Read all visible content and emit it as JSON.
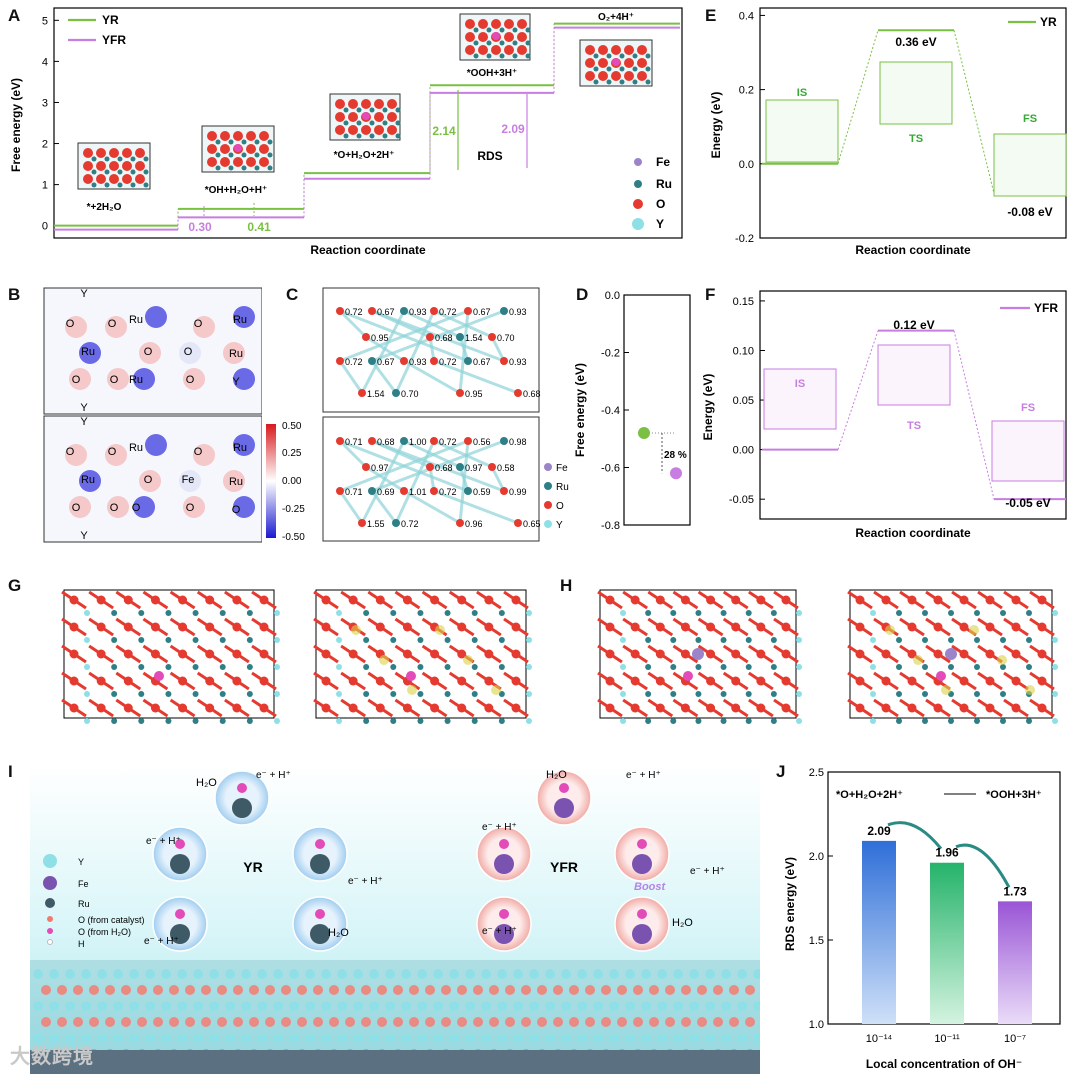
{
  "panel_labels": [
    "A",
    "B",
    "C",
    "D",
    "E",
    "F",
    "G",
    "H",
    "I",
    "J"
  ],
  "colors": {
    "yr": "#7ac143",
    "yfr": "#c77ee0",
    "fe": "#9b84c9",
    "ru": "#2e7f86",
    "o": "#e53a2f",
    "y": "#8fe0e6",
    "pink": "#e24bb8"
  },
  "panelA": {
    "legend": [
      "YR",
      "YFR"
    ],
    "ylabel": "Free energy (eV)",
    "xlabel": "Reaction coordinate",
    "yticks": [
      "0",
      "1",
      "2",
      "3",
      "4",
      "5"
    ],
    "steps": [
      "*+2H₂O",
      "*OH+H₂O+H⁺",
      "*O+H₂O+2H⁺",
      "*OOH+3H⁺",
      "O₂+4H⁺"
    ],
    "rds_label": "RDS",
    "ann": {
      "yfr_first": "0.30",
      "yr_first": "0.41",
      "yr_rds": "2.14",
      "yfr_rds": "2.09"
    },
    "legend2": [
      "Fe",
      "Ru",
      "O",
      "Y"
    ]
  },
  "chart_data": [
    {
      "type": "line",
      "title": "A",
      "xlabel": "Reaction coordinate",
      "ylabel": "Free energy (eV)",
      "ylim": [
        -0.3,
        5.3
      ],
      "categories": [
        "*+2H2O",
        "*OH+H2O+H+",
        "*O+H2O+2H+",
        "*OOH+3H+",
        "O2+4H+"
      ],
      "series": [
        {
          "name": "YR",
          "values": [
            0,
            0.41,
            1.28,
            3.42,
            4.92
          ]
        },
        {
          "name": "YFR",
          "values": [
            0,
            0.3,
            1.24,
            3.33,
            4.92
          ]
        }
      ]
    },
    {
      "type": "line",
      "title": "E",
      "xlabel": "Reaction coordinate",
      "ylabel": "Energy (eV)",
      "ylim": [
        -0.2,
        0.42
      ],
      "categories": [
        "IS",
        "TS",
        "FS"
      ],
      "series": [
        {
          "name": "YR",
          "values": [
            0,
            0.36,
            -0.08
          ]
        }
      ]
    },
    {
      "type": "line",
      "title": "F",
      "xlabel": "Reaction coordinate",
      "ylabel": "Energy (eV)",
      "ylim": [
        -0.07,
        0.16
      ],
      "categories": [
        "IS",
        "TS",
        "FS"
      ],
      "series": [
        {
          "name": "YFR",
          "values": [
            0,
            0.12,
            -0.05
          ]
        }
      ]
    },
    {
      "type": "scatter",
      "title": "D",
      "ylabel": "Free energy (eV)",
      "ylim": [
        -0.8,
        0.0
      ],
      "series": [
        {
          "name": "YR",
          "values": [
            -0.48
          ]
        },
        {
          "name": "YFR",
          "values": [
            -0.62
          ]
        }
      ],
      "annotation": "28 %"
    },
    {
      "type": "bar",
      "title": "J",
      "xlabel": "Local concentration of OH⁻",
      "ylabel": "RDS energy (eV)",
      "ylim": [
        1.0,
        2.5
      ],
      "categories": [
        "10⁻¹⁴",
        "10⁻¹¹",
        "10⁻⁷"
      ],
      "values": [
        2.09,
        1.96,
        1.73
      ]
    }
  ],
  "panelE": {
    "legend": "YR",
    "ylabel": "Energy (eV)",
    "xlabel": "Reaction coordinate",
    "yticks": [
      "0.4",
      "0.2",
      "0.0",
      "-0.2"
    ],
    "states": [
      "IS",
      "TS",
      "FS"
    ],
    "values": [
      "0.36 eV",
      "-0.08 eV"
    ]
  },
  "panelF": {
    "legend": "YFR",
    "ylabel": "Energy (eV)",
    "xlabel": "Reaction coordinate",
    "yticks": [
      "0.15",
      "0.10",
      "0.05",
      "0.00",
      "-0.05"
    ],
    "states": [
      "IS",
      "TS",
      "FS"
    ],
    "values": [
      "0.12 eV",
      "-0.05 eV"
    ]
  },
  "panelB": {
    "colorbar": [
      "0.50",
      "0.25",
      "0.00",
      "-0.25",
      "-0.50"
    ],
    "top_labels": [
      "Y",
      "O",
      "O",
      "Ru",
      "O",
      "Ru",
      "Ru",
      "O",
      "O",
      "Y",
      "O",
      "O",
      "Ru",
      "O",
      "Ru",
      "Y"
    ],
    "bottom_labels": [
      "Y",
      "O",
      "O",
      "Ru",
      "O",
      "Ru",
      "Ru",
      "O",
      "Fe",
      "O",
      "O",
      "O",
      "O",
      "O",
      "Ru",
      "Y"
    ]
  },
  "panelC": {
    "top_values": [
      "0.72",
      "0.67",
      "0.93",
      "0.72",
      "0.67",
      "0.93",
      "0.95",
      "0.68",
      "1.54",
      "0.70",
      "0.72",
      "0.67",
      "0.93",
      "0.72",
      "0.67",
      "0.93",
      "1.54",
      "0.70",
      "0.95",
      "0.68"
    ],
    "bottom_values": [
      "0.71",
      "0.68",
      "1.00",
      "0.72",
      "0.56",
      "0.98",
      "0.97",
      "0.68",
      "0.97",
      "0.58",
      "0.71",
      "0.69",
      "1.01",
      "0.72",
      "0.59",
      "0.99",
      "1.55",
      "0.72",
      "0.96",
      "0.65"
    ],
    "legend": [
      "Fe",
      "Ru",
      "O",
      "Y"
    ]
  },
  "panelD": {
    "ylabel": "Free energy (eV)",
    "yticks": [
      "0.0",
      "-0.2",
      "-0.4",
      "-0.6",
      "-0.8"
    ],
    "ann": "28 %"
  },
  "panelI": {
    "yr_title": "YR",
    "yfr_title": "YFR",
    "boost": "Boost",
    "labels_yr": [
      "H₂O",
      "e⁻ + H⁺",
      "e⁻ + H⁺",
      "e⁻ + H⁺",
      "e⁻ + H⁺",
      "H₂O"
    ],
    "labels_yfr": [
      "H₂O",
      "e⁻ + H⁺",
      "e⁻ + H⁺",
      "e⁻ + H⁺",
      "e⁻ + H⁺",
      "H₂O"
    ],
    "legend": [
      "Y",
      "Fe",
      "Ru",
      "O (from catalyst)",
      "O (from H₂O)",
      "H"
    ]
  },
  "panelJ": {
    "reaction_left": "*O+H₂O+2H⁺",
    "reaction_right": "*OOH+3H⁺",
    "ylabel": "RDS energy (eV)",
    "xlabel": "Local concentration of OH⁻",
    "yticks": [
      "2.5",
      "2.0",
      "1.5",
      "1.0"
    ],
    "bar_labels": [
      "2.09",
      "1.96",
      "1.73"
    ],
    "categories": [
      "10⁻¹⁴",
      "10⁻¹¹",
      "10⁻⁷"
    ]
  },
  "watermark": "大数跨境"
}
